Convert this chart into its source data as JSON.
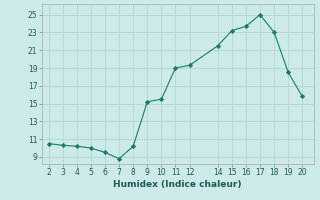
{
  "x": [
    2,
    3,
    4,
    5,
    6,
    7,
    8,
    9,
    10,
    11,
    12,
    14,
    15,
    16,
    17,
    18,
    19,
    20
  ],
  "y": [
    10.5,
    10.3,
    10.2,
    10.0,
    9.5,
    8.8,
    10.2,
    15.2,
    15.5,
    19.0,
    19.3,
    21.5,
    23.2,
    23.7,
    25.0,
    23.0,
    18.5,
    15.8
  ],
  "xlabel": "Humidex (Indice chaleur)",
  "line_color": "#1a7a6e",
  "marker": "D",
  "marker_size": 2.2,
  "bg_color": "#cceae8",
  "grid_color": "#b2d6d3",
  "xlim": [
    1.5,
    20.8
  ],
  "ylim": [
    8.2,
    26.2
  ],
  "xticks": [
    2,
    3,
    4,
    5,
    6,
    7,
    8,
    9,
    10,
    11,
    12,
    14,
    15,
    16,
    17,
    18,
    19,
    20
  ],
  "yticks": [
    9,
    11,
    13,
    15,
    17,
    19,
    21,
    23,
    25
  ],
  "tick_fontsize": 5.5,
  "xlabel_fontsize": 6.5
}
